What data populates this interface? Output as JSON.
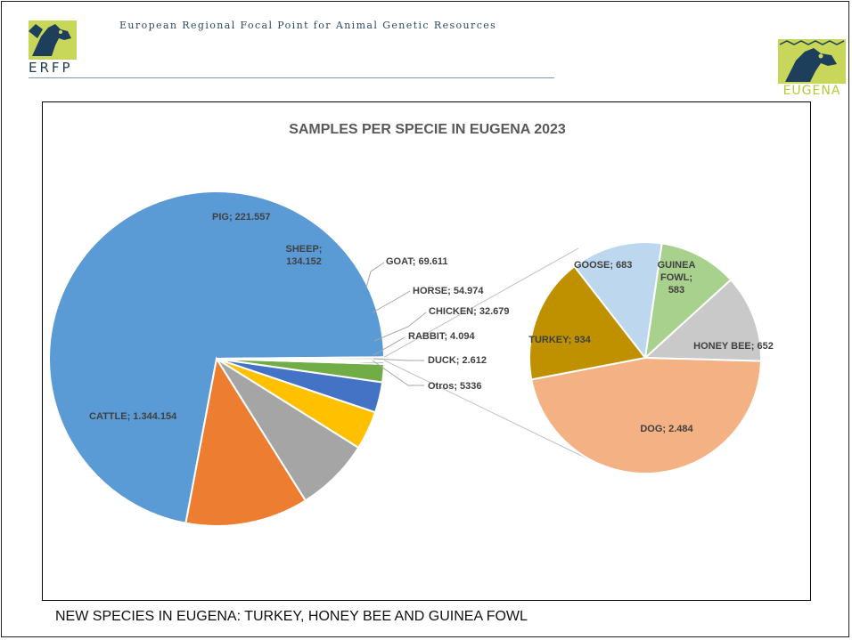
{
  "header": {
    "org_title": "European Regional Focal Point for Animal Genetic Resources",
    "left_logo_text": "ERFP",
    "right_logo_text": "EUGENA"
  },
  "caption": "NEW SPECIES  IN EUGENA: TURKEY, HONEY BEE AND GUINEA FOWL",
  "chart_data": {
    "type": "pie",
    "subtype": "pie-of-pie",
    "title": "SAMPLES PER SPECIE IN EUGENA 2023",
    "main_pie": [
      {
        "label": "CATTLE; 1.344.154",
        "category": "CATTLE",
        "value": 1344154,
        "color": "#5B9BD5"
      },
      {
        "label": "PIG; 221.557",
        "category": "PIG",
        "value": 221557,
        "color": "#ED7D31"
      },
      {
        "label": "SHEEP; 134.152",
        "category": "SHEEP",
        "value": 134152,
        "color": "#A5A5A5"
      },
      {
        "label": "GOAT; 69.611",
        "category": "GOAT",
        "value": 69611,
        "color": "#FFC000"
      },
      {
        "label": "HORSE; 54.974",
        "category": "HORSE",
        "value": 54974,
        "color": "#4472C4"
      },
      {
        "label": "CHICKEN; 32.679",
        "category": "CHICKEN",
        "value": 32679,
        "color": "#70AD47"
      },
      {
        "label": "RABBIT; 4.094",
        "category": "RABBIT",
        "value": 4094,
        "color": "#264478"
      },
      {
        "label": "DUCK; 2.612",
        "category": "DUCK",
        "value": 2612,
        "color": "#9E480E"
      },
      {
        "label": "Otros; 5336",
        "category": "Otros",
        "value": 5336,
        "color": "#D9D9D9"
      }
    ],
    "secondary_pie": [
      {
        "label": "GOOSE; 683",
        "category": "GOOSE",
        "value": 683,
        "color": "#BDD7EE"
      },
      {
        "label": "GUINEA FOWL; 583",
        "category": "GUINEA FOWL",
        "value": 583,
        "color": "#A9D18E"
      },
      {
        "label": "HONEY BEE; 652",
        "category": "HONEY BEE",
        "value": 652,
        "color": "#C9C9C9"
      },
      {
        "label": "DOG; 2.484",
        "category": "DOG",
        "value": 2484,
        "color": "#F4B183"
      },
      {
        "label": "TURKEY; 934",
        "category": "TURKEY",
        "value": 934,
        "color": "#BF9000"
      }
    ]
  }
}
